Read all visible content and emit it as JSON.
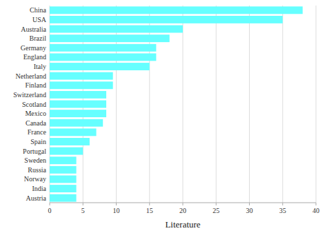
{
  "chart_data": {
    "type": "bar",
    "orientation": "horizontal",
    "categories": [
      "China",
      "USA",
      "Australia",
      "Brazil",
      "Germany",
      "England",
      "Italy",
      "Netherland",
      "Finland",
      "Switzerland",
      "Scotland",
      "Mexico",
      "Canada",
      "France",
      "Spain",
      "Portugal",
      "Sweden",
      "Russia",
      "Norway",
      "India",
      "Austria"
    ],
    "values": [
      38,
      35,
      20,
      18,
      16,
      16,
      15,
      9.5,
      9.5,
      8.5,
      8.5,
      8.5,
      8,
      7,
      6,
      5,
      4,
      4,
      4,
      4,
      4
    ],
    "color": "#66FFFF",
    "xlabel": "Literature",
    "xlim": [
      0,
      40
    ],
    "xticks": [
      0,
      5,
      10,
      15,
      20,
      25,
      30,
      35,
      40
    ],
    "grid": true
  }
}
